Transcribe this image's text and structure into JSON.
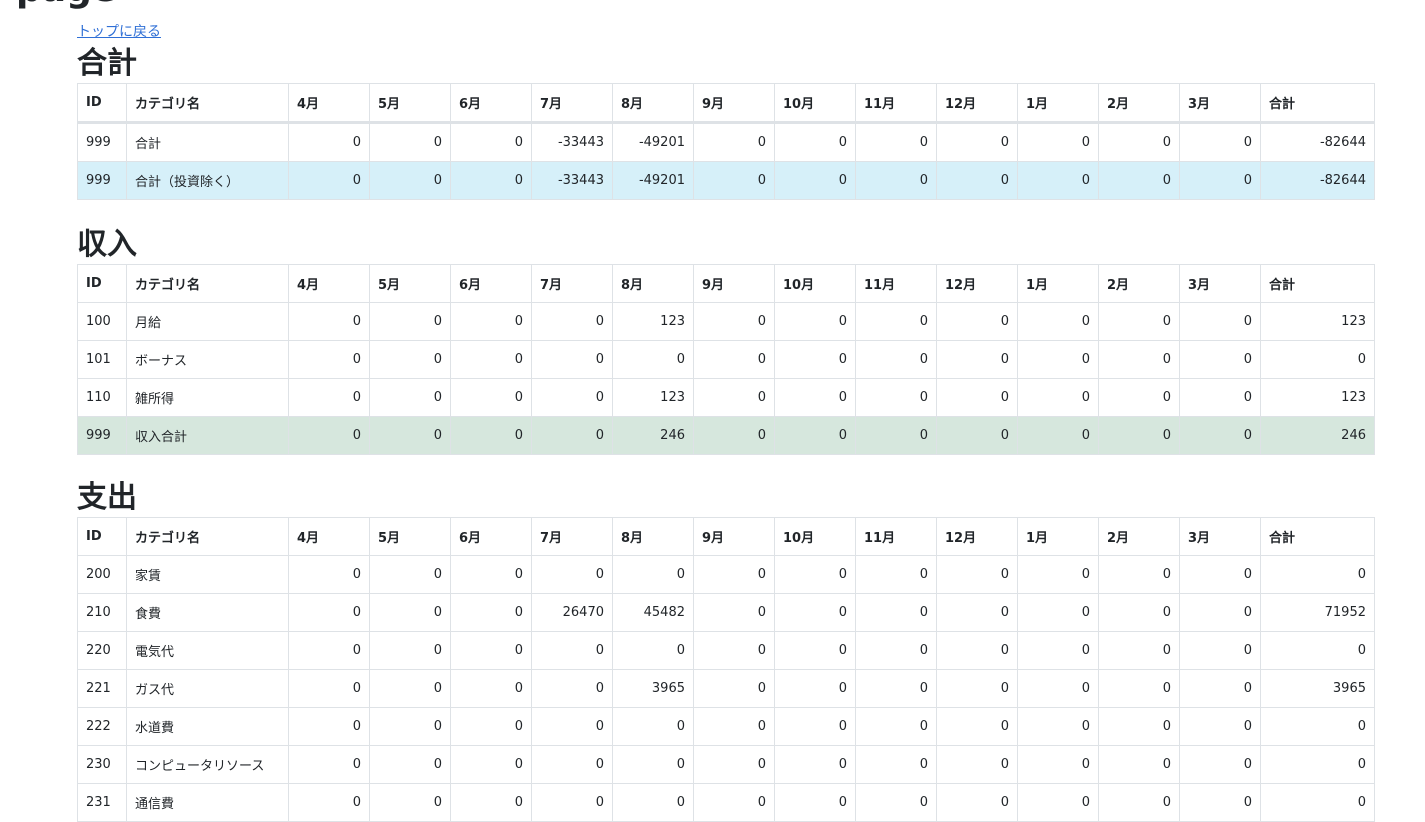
{
  "page": {
    "title": "page",
    "back_link": "トップに戻る"
  },
  "columns": [
    "ID",
    "カテゴリ名",
    "4月",
    "5月",
    "6月",
    "7月",
    "8月",
    "9月",
    "10月",
    "11月",
    "12月",
    "1月",
    "2月",
    "3月",
    "合計"
  ],
  "sections": [
    {
      "title": "合計",
      "rows": [
        {
          "cells": [
            "999",
            "合計",
            "0",
            "0",
            "0",
            "-33443",
            "-49201",
            "0",
            "0",
            "0",
            "0",
            "0",
            "0",
            "0",
            "-82644"
          ],
          "highlight": ""
        },
        {
          "cells": [
            "999",
            "合計（投資除く）",
            "0",
            "0",
            "0",
            "-33443",
            "-49201",
            "0",
            "0",
            "0",
            "0",
            "0",
            "0",
            "0",
            "-82644"
          ],
          "highlight": "info"
        }
      ]
    },
    {
      "title": "収入",
      "rows": [
        {
          "cells": [
            "100",
            "月給",
            "0",
            "0",
            "0",
            "0",
            "123",
            "0",
            "0",
            "0",
            "0",
            "0",
            "0",
            "0",
            "123"
          ],
          "highlight": ""
        },
        {
          "cells": [
            "101",
            "ボーナス",
            "0",
            "0",
            "0",
            "0",
            "0",
            "0",
            "0",
            "0",
            "0",
            "0",
            "0",
            "0",
            "0"
          ],
          "highlight": ""
        },
        {
          "cells": [
            "110",
            "雑所得",
            "0",
            "0",
            "0",
            "0",
            "123",
            "0",
            "0",
            "0",
            "0",
            "0",
            "0",
            "0",
            "123"
          ],
          "highlight": ""
        },
        {
          "cells": [
            "999",
            "収入合計",
            "0",
            "0",
            "0",
            "0",
            "246",
            "0",
            "0",
            "0",
            "0",
            "0",
            "0",
            "0",
            "246"
          ],
          "highlight": "success"
        }
      ]
    },
    {
      "title": "支出",
      "rows": [
        {
          "cells": [
            "200",
            "家賃",
            "0",
            "0",
            "0",
            "0",
            "0",
            "0",
            "0",
            "0",
            "0",
            "0",
            "0",
            "0",
            "0"
          ],
          "highlight": ""
        },
        {
          "cells": [
            "210",
            "食費",
            "0",
            "0",
            "0",
            "26470",
            "45482",
            "0",
            "0",
            "0",
            "0",
            "0",
            "0",
            "0",
            "71952"
          ],
          "highlight": ""
        },
        {
          "cells": [
            "220",
            "電気代",
            "0",
            "0",
            "0",
            "0",
            "0",
            "0",
            "0",
            "0",
            "0",
            "0",
            "0",
            "0",
            "0"
          ],
          "highlight": ""
        },
        {
          "cells": [
            "221",
            "ガス代",
            "0",
            "0",
            "0",
            "0",
            "3965",
            "0",
            "0",
            "0",
            "0",
            "0",
            "0",
            "0",
            "3965"
          ],
          "highlight": ""
        },
        {
          "cells": [
            "222",
            "水道費",
            "0",
            "0",
            "0",
            "0",
            "0",
            "0",
            "0",
            "0",
            "0",
            "0",
            "0",
            "0",
            "0"
          ],
          "highlight": ""
        },
        {
          "cells": [
            "230",
            "コンピュータリソース",
            "0",
            "0",
            "0",
            "0",
            "0",
            "0",
            "0",
            "0",
            "0",
            "0",
            "0",
            "0",
            "0"
          ],
          "highlight": ""
        },
        {
          "cells": [
            "231",
            "通信費",
            "0",
            "0",
            "0",
            "0",
            "0",
            "0",
            "0",
            "0",
            "0",
            "0",
            "0",
            "0",
            "0"
          ],
          "highlight": ""
        }
      ]
    }
  ]
}
